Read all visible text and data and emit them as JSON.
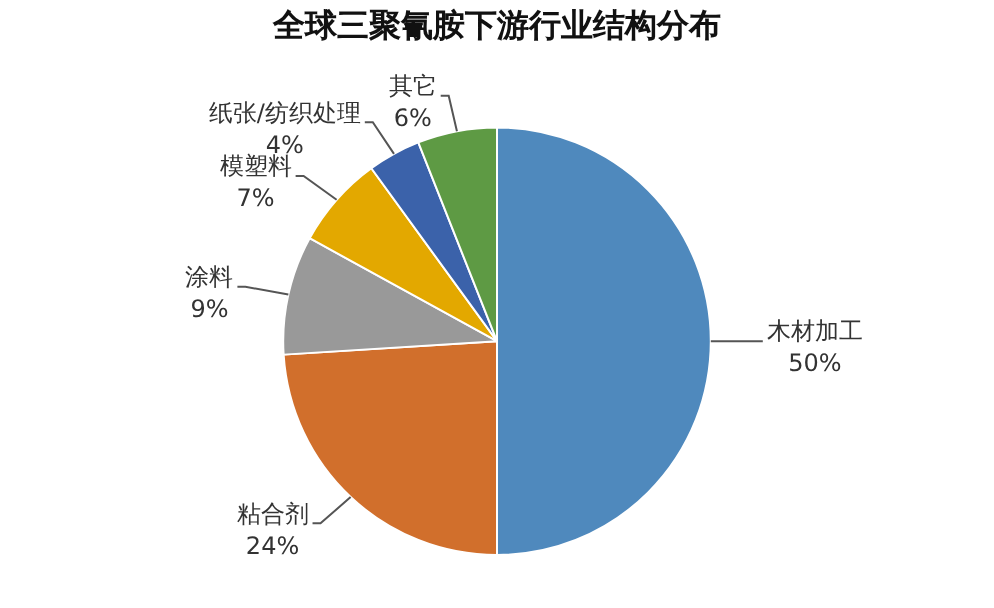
{
  "chart_data": {
    "type": "pie",
    "title": "全球三聚氰胺下游行业结构分布",
    "categories": [
      "木材加工",
      "粘合剂",
      "涂料",
      "模塑料",
      "纸张/纺织处理",
      "其它"
    ],
    "values": [
      50,
      24,
      9,
      7,
      4,
      6
    ],
    "colors": [
      "#4f89bd",
      "#d16f2c",
      "#999999",
      "#e3a800",
      "#3b62aa",
      "#5e9a44"
    ],
    "value_labels": [
      "50%",
      "24%",
      "9%",
      "7%",
      "4%",
      "6%"
    ],
    "legend": false
  }
}
